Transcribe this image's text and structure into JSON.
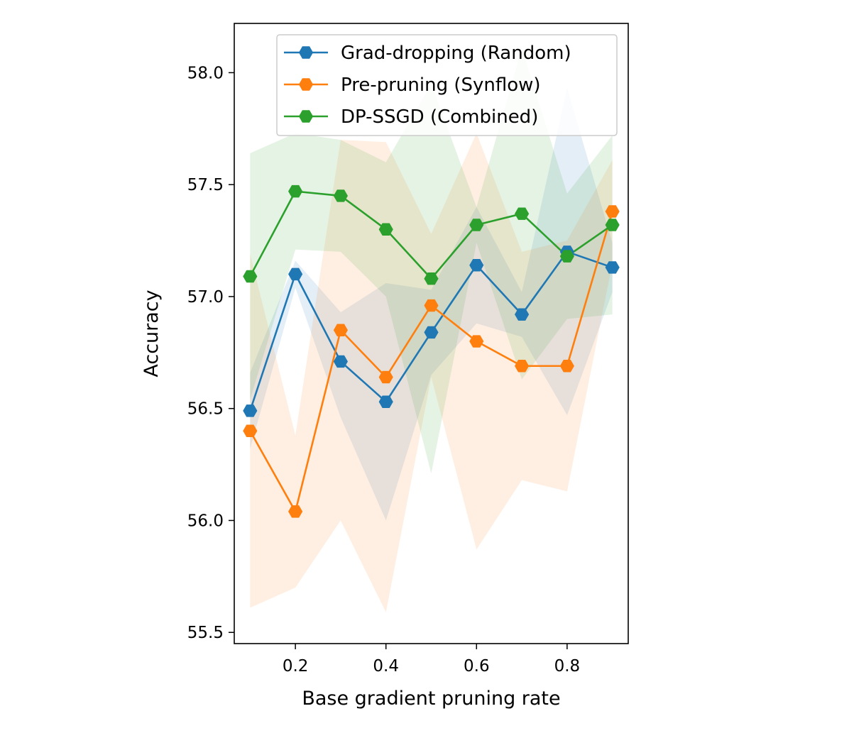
{
  "chart_data": {
    "type": "line",
    "title": "",
    "xlabel": "Base gradient pruning rate",
    "ylabel": "Accuracy",
    "xlim": [
      0.065,
      0.935
    ],
    "ylim": [
      55.45,
      58.22
    ],
    "xticks": [
      0.2,
      0.4,
      0.6,
      0.8
    ],
    "xtick_labels": [
      "0.2",
      "0.4",
      "0.6",
      "0.8"
    ],
    "yticks": [
      55.5,
      56.0,
      56.5,
      57.0,
      57.5,
      58.0
    ],
    "ytick_labels": [
      "55.5",
      "56.0",
      "56.5",
      "57.0",
      "57.5",
      "58.0"
    ],
    "x": [
      0.1,
      0.2,
      0.3,
      0.4,
      0.5,
      0.6,
      0.7,
      0.8,
      0.9
    ],
    "legend_position": "upper right",
    "series": [
      {
        "name": "Grad-dropping (Random)",
        "color": "#1f77b4",
        "values": [
          56.49,
          57.1,
          56.71,
          56.53,
          56.84,
          57.14,
          56.92,
          57.2,
          57.13
        ],
        "lower": [
          56.32,
          57.04,
          56.46,
          56.0,
          56.65,
          56.88,
          56.82,
          56.47,
          57.02
        ],
        "upper": [
          56.66,
          57.16,
          56.93,
          57.06,
          57.03,
          57.4,
          57.02,
          57.93,
          57.24
        ]
      },
      {
        "name": "Pre-pruning (Synflow)",
        "color": "#ff7f0e",
        "values": [
          56.4,
          56.04,
          56.85,
          56.64,
          56.96,
          56.8,
          56.69,
          56.69,
          57.38
        ],
        "lower": [
          55.61,
          55.7,
          56.0,
          55.59,
          56.64,
          55.87,
          56.18,
          56.13,
          57.15
        ],
        "upper": [
          57.19,
          56.38,
          57.7,
          57.69,
          57.28,
          57.73,
          57.2,
          57.25,
          57.61
        ]
      },
      {
        "name": "DP-SSGD (Combined)",
        "color": "#2ca02c",
        "values": [
          57.09,
          57.47,
          57.45,
          57.3,
          57.08,
          57.32,
          57.37,
          57.18,
          57.32
        ],
        "lower": [
          56.54,
          57.21,
          57.2,
          57.0,
          56.21,
          57.24,
          56.63,
          56.9,
          56.92
        ],
        "upper": [
          57.64,
          57.73,
          57.7,
          57.6,
          57.95,
          57.4,
          58.11,
          57.46,
          57.72
        ]
      }
    ]
  }
}
